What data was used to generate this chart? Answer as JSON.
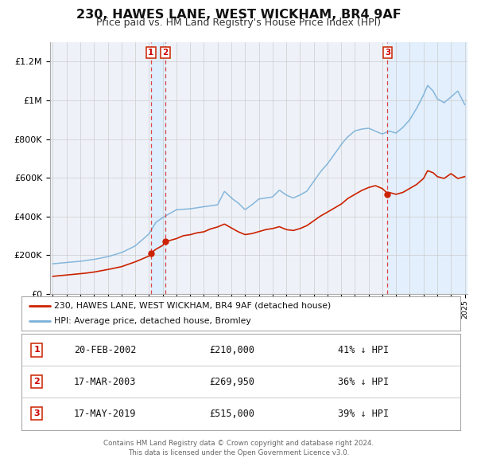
{
  "title": "230, HAWES LANE, WEST WICKHAM, BR4 9AF",
  "subtitle": "Price paid vs. HM Land Registry's House Price Index (HPI)",
  "background_color": "#ffffff",
  "plot_bg_color": "#eef2f8",
  "grid_color": "#cccccc",
  "hpi_line_color": "#7ab0d8",
  "sale_line_color": "#cc2200",
  "vline_color": "#dd4444",
  "vband_color": "#ddeeff",
  "ylim": [
    0,
    1300000
  ],
  "yticks": [
    0,
    200000,
    400000,
    600000,
    800000,
    1000000,
    1200000
  ],
  "ytick_labels": [
    "£0",
    "£200K",
    "£400K",
    "£600K",
    "£800K",
    "£1M",
    "£1.2M"
  ],
  "year_start": 1995,
  "year_end": 2025,
  "sales": [
    {
      "date_num": 2002.13,
      "price": 210000,
      "label": "1"
    },
    {
      "date_num": 2003.21,
      "price": 269950,
      "label": "2"
    },
    {
      "date_num": 2019.38,
      "price": 515000,
      "label": "3"
    }
  ],
  "legend_items": [
    {
      "label": "230, HAWES LANE, WEST WICKHAM, BR4 9AF (detached house)",
      "color": "#cc2200"
    },
    {
      "label": "HPI: Average price, detached house, Bromley",
      "color": "#7ab0d8"
    }
  ],
  "table_rows": [
    {
      "num": "1",
      "date": "20-FEB-2002",
      "price": "£210,000",
      "note": "41% ↓ HPI"
    },
    {
      "num": "2",
      "date": "17-MAR-2003",
      "price": "£269,950",
      "note": "36% ↓ HPI"
    },
    {
      "num": "3",
      "date": "17-MAY-2019",
      "price": "£515,000",
      "note": "39% ↓ HPI"
    }
  ],
  "footer": "Contains HM Land Registry data © Crown copyright and database right 2024.\nThis data is licensed under the Open Government Licence v3.0.",
  "hpi_keypoints": [
    [
      1995.0,
      155000
    ],
    [
      1996.0,
      162000
    ],
    [
      1997.0,
      168000
    ],
    [
      1998.0,
      178000
    ],
    [
      1999.0,
      192000
    ],
    [
      2000.0,
      213000
    ],
    [
      2001.0,
      248000
    ],
    [
      2002.0,
      310000
    ],
    [
      2002.5,
      370000
    ],
    [
      2003.0,
      395000
    ],
    [
      2003.5,
      415000
    ],
    [
      2004.0,
      435000
    ],
    [
      2005.0,
      440000
    ],
    [
      2006.0,
      450000
    ],
    [
      2007.0,
      460000
    ],
    [
      2007.5,
      530000
    ],
    [
      2008.0,
      495000
    ],
    [
      2008.5,
      470000
    ],
    [
      2009.0,
      435000
    ],
    [
      2009.5,
      460000
    ],
    [
      2010.0,
      490000
    ],
    [
      2011.0,
      500000
    ],
    [
      2011.5,
      535000
    ],
    [
      2012.0,
      510000
    ],
    [
      2012.5,
      495000
    ],
    [
      2013.0,
      510000
    ],
    [
      2013.5,
      530000
    ],
    [
      2014.0,
      580000
    ],
    [
      2014.5,
      630000
    ],
    [
      2015.0,
      670000
    ],
    [
      2015.5,
      720000
    ],
    [
      2016.0,
      770000
    ],
    [
      2016.5,
      810000
    ],
    [
      2017.0,
      840000
    ],
    [
      2017.5,
      850000
    ],
    [
      2018.0,
      855000
    ],
    [
      2018.5,
      840000
    ],
    [
      2019.0,
      825000
    ],
    [
      2019.5,
      840000
    ],
    [
      2020.0,
      830000
    ],
    [
      2020.5,
      860000
    ],
    [
      2021.0,
      900000
    ],
    [
      2021.5,
      960000
    ],
    [
      2022.0,
      1030000
    ],
    [
      2022.3,
      1080000
    ],
    [
      2022.7,
      1050000
    ],
    [
      2023.0,
      1010000
    ],
    [
      2023.5,
      990000
    ],
    [
      2024.0,
      1020000
    ],
    [
      2024.5,
      1050000
    ],
    [
      2025.0,
      980000
    ]
  ],
  "sale_keypoints": [
    [
      1995.0,
      90000
    ],
    [
      1996.0,
      97000
    ],
    [
      1997.0,
      103000
    ],
    [
      1998.0,
      112000
    ],
    [
      1999.0,
      125000
    ],
    [
      2000.0,
      140000
    ],
    [
      2001.0,
      165000
    ],
    [
      2002.0,
      195000
    ],
    [
      2002.13,
      210000
    ],
    [
      2002.5,
      230000
    ],
    [
      2003.0,
      250000
    ],
    [
      2003.21,
      269950
    ],
    [
      2003.5,
      275000
    ],
    [
      2004.0,
      285000
    ],
    [
      2004.5,
      300000
    ],
    [
      2005.0,
      305000
    ],
    [
      2005.5,
      315000
    ],
    [
      2006.0,
      320000
    ],
    [
      2006.5,
      335000
    ],
    [
      2007.0,
      345000
    ],
    [
      2007.5,
      360000
    ],
    [
      2008.0,
      340000
    ],
    [
      2008.5,
      320000
    ],
    [
      2009.0,
      305000
    ],
    [
      2009.5,
      310000
    ],
    [
      2010.0,
      320000
    ],
    [
      2010.5,
      330000
    ],
    [
      2011.0,
      335000
    ],
    [
      2011.5,
      345000
    ],
    [
      2012.0,
      330000
    ],
    [
      2012.5,
      325000
    ],
    [
      2013.0,
      335000
    ],
    [
      2013.5,
      350000
    ],
    [
      2014.0,
      375000
    ],
    [
      2014.5,
      400000
    ],
    [
      2015.0,
      420000
    ],
    [
      2015.5,
      440000
    ],
    [
      2016.0,
      460000
    ],
    [
      2016.5,
      490000
    ],
    [
      2017.0,
      510000
    ],
    [
      2017.5,
      530000
    ],
    [
      2018.0,
      545000
    ],
    [
      2018.5,
      555000
    ],
    [
      2019.0,
      540000
    ],
    [
      2019.38,
      515000
    ],
    [
      2019.5,
      520000
    ],
    [
      2020.0,
      510000
    ],
    [
      2020.5,
      520000
    ],
    [
      2021.0,
      540000
    ],
    [
      2021.5,
      560000
    ],
    [
      2022.0,
      590000
    ],
    [
      2022.3,
      630000
    ],
    [
      2022.7,
      620000
    ],
    [
      2023.0,
      600000
    ],
    [
      2023.5,
      590000
    ],
    [
      2024.0,
      615000
    ],
    [
      2024.5,
      590000
    ],
    [
      2025.0,
      600000
    ]
  ]
}
